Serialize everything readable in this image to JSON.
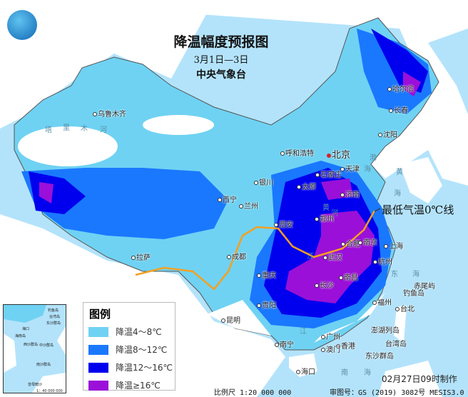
{
  "title": {
    "main": "降温幅度预报图",
    "period": "3月1日—3日",
    "issuer": "中央气象台"
  },
  "legend": {
    "title": "图例",
    "items": [
      {
        "label": "降温4～8℃",
        "color": "#6fd2f3"
      },
      {
        "label": "降温8～12℃",
        "color": "#1a78ff"
      },
      {
        "label": "降温12～16℃",
        "color": "#0000ee"
      },
      {
        "label": "降温≥16℃",
        "color": "#9a10d8"
      }
    ]
  },
  "annotation": {
    "zero_line": "最低气温0℃线",
    "zero_line_color": "#f5a020"
  },
  "cities": [
    "乌鲁木齐",
    "哈尔滨",
    "长春",
    "沈阳",
    "北京",
    "天津",
    "呼和浩特",
    "石家庄",
    "太原",
    "济南",
    "郑州",
    "西安",
    "银川",
    "西宁",
    "兰州",
    "拉萨",
    "成都",
    "重庆",
    "武汉",
    "合肥",
    "南京",
    "上海",
    "杭州",
    "长沙",
    "南昌",
    "福州",
    "台北",
    "贵阳",
    "昆明",
    "南宁",
    "广州",
    "香港",
    "澳门",
    "海口"
  ],
  "islands": [
    "赤尾屿",
    "钓鱼岛",
    "澎湖列岛",
    "台湾岛",
    "东沙群岛"
  ],
  "seas": [
    "渤",
    "海",
    "黄",
    "海",
    "东",
    "海",
    "南",
    "海"
  ],
  "rivers": [
    "塔",
    "里",
    "木",
    "河",
    "黄",
    "河",
    "江",
    "江"
  ],
  "inset": {
    "labels": [
      "钓鱼岛",
      "台湾岛",
      "东沙群岛",
      "海口",
      "海南岛",
      "西沙群岛",
      "中沙群岛",
      "南沙群岛",
      "曾母暗沙"
    ],
    "scale": "1：40 000 000"
  },
  "footer": {
    "scale": "比例尺 1:20 000 000",
    "approval": "审图号：GS (2019) 3082号 MESIS3.0",
    "made": "02月27日09时制作"
  },
  "colors": {
    "sea": "#b3e3fb",
    "land_other": "#ffffff",
    "capital_marker": "#e02020"
  }
}
